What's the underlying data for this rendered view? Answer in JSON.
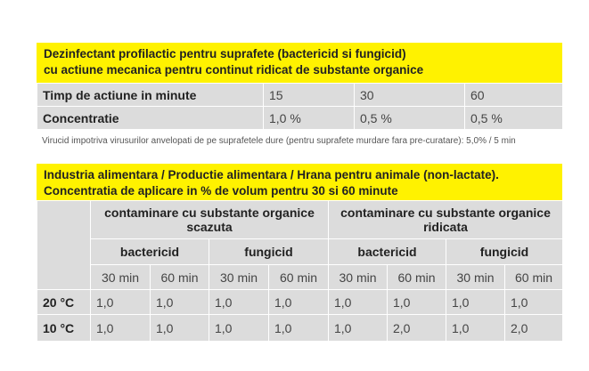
{
  "table1": {
    "title": [
      "Dezinfectant profilactic pentru suprafete (bactericid si fungicid)",
      "cu actiune mecanica pentru continut ridicat de substante organice"
    ],
    "rows": [
      [
        "Timp de actiune in minute",
        "15",
        "30",
        "60"
      ],
      [
        "Concentratie",
        "1,0 %",
        "0,5 %",
        "0,5 %"
      ]
    ]
  },
  "note": "Virucid impotriva virusurilor anvelopati de pe suprafetele dure (pentru suprafete murdare fara pre-curatare): 5,0% / 5 min",
  "table2": {
    "title": [
      "Industria alimentara / Productie alimentara / Hrana pentru animale (non-lactate).",
      "Concentratia de aplicare in % de volum pentru 30 si 60 minute"
    ],
    "groups": [
      "contaminare cu substante organice scazuta",
      "contaminare cu substante organice ridicata"
    ],
    "subgroups": [
      "bactericid",
      "fungicid",
      "bactericid",
      "fungicid"
    ],
    "times": [
      "30 min",
      "60 min",
      "30 min",
      "60 min",
      "30 min",
      "60 min",
      "30 min",
      "60 min"
    ],
    "rows": [
      [
        "20 °C",
        "1,0",
        "1,0",
        "1,0",
        "1,0",
        "1,0",
        "1,0",
        "1,0",
        "1,0"
      ],
      [
        "10 °C",
        "1,0",
        "1,0",
        "1,0",
        "1,0",
        "1,0",
        "2,0",
        "1,0",
        "2,0"
      ]
    ]
  }
}
